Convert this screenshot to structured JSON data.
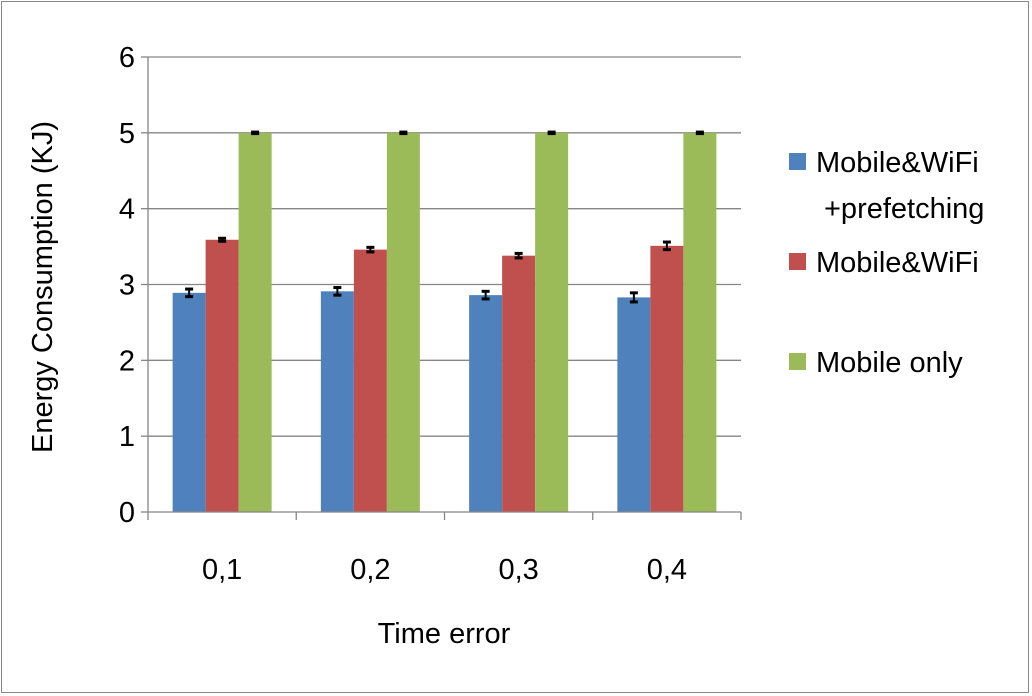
{
  "chart_data": {
    "type": "bar",
    "title": "",
    "xlabel": "Time error",
    "ylabel": "Energy Consumption (KJ)",
    "categories": [
      "0,1",
      "0,2",
      "0,3",
      "0,4"
    ],
    "ylim": [
      0,
      6
    ],
    "yticks": [
      "0",
      "1",
      "2",
      "3",
      "4",
      "5",
      "6"
    ],
    "grid": true,
    "legend_position": "right",
    "error_bars": true,
    "series": [
      {
        "name": "Mobile&WiFi +prefetching",
        "legend_lines": [
          "Mobile&WiFi",
          "+prefetching"
        ],
        "color": "#4f81bd",
        "values": [
          2.89,
          2.91,
          2.86,
          2.83
        ],
        "errors": [
          0.05,
          0.05,
          0.05,
          0.06
        ]
      },
      {
        "name": "Mobile&WiFi",
        "legend_lines": [
          "Mobile&WiFi"
        ],
        "color": "#c0504d",
        "values": [
          3.59,
          3.46,
          3.38,
          3.51
        ],
        "errors": [
          0.02,
          0.03,
          0.03,
          0.05
        ]
      },
      {
        "name": "Mobile only",
        "legend_lines": [
          "Mobile only"
        ],
        "color": "#9bbb59",
        "values": [
          5.0,
          5.0,
          5.0,
          5.0
        ],
        "errors": [
          0.01,
          0.01,
          0.01,
          0.01
        ]
      }
    ]
  }
}
